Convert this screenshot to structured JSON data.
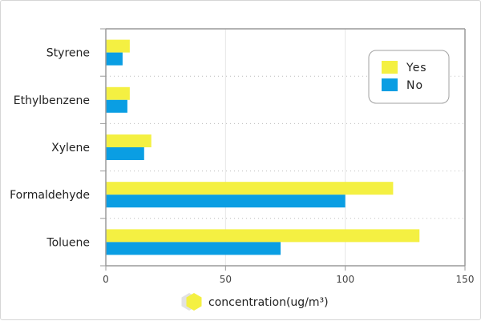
{
  "chart_data": {
    "type": "bar",
    "orientation": "horizontal",
    "categories": [
      "Toluene",
      "Formaldehyde",
      "Xylene",
      "Ethylbenzene",
      "Styrene"
    ],
    "series": [
      {
        "name": "Yes",
        "color": "#f4f042",
        "values": [
          131,
          120,
          19,
          10,
          10
        ]
      },
      {
        "name": "No",
        "color": "#0a9ee3",
        "values": [
          73,
          100,
          16,
          9,
          7
        ]
      }
    ],
    "xlabel": "concentration(ug/m³)",
    "ylabel": "",
    "xlim": [
      0,
      150
    ],
    "xticks": [
      0,
      50,
      100,
      150
    ],
    "grid": true,
    "legend_position": "top-right",
    "legend_border_color": "#a0a0a0",
    "xlabel_icon": "hexagon-icon",
    "xlabel_icon_color": "#f4f042"
  }
}
